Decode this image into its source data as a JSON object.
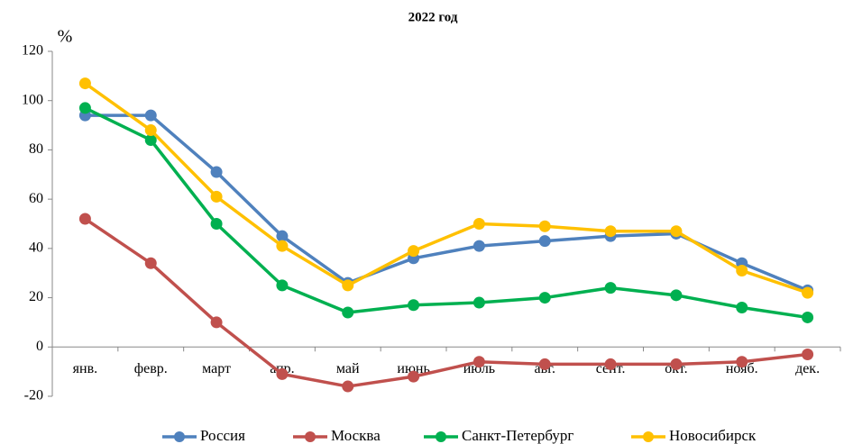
{
  "chart_data": {
    "type": "line",
    "title": "2022 год",
    "y_label": "%",
    "categories": [
      "янв.",
      "февр.",
      "март",
      "апр.",
      "май",
      "июнь",
      "июль",
      "авг.",
      "сент.",
      "окт.",
      "нояб.",
      "дек."
    ],
    "series": [
      {
        "name": "Россия",
        "color": "#4f81bd",
        "values": [
          94,
          94,
          71,
          45,
          26,
          36,
          41,
          43,
          45,
          46,
          34,
          23
        ]
      },
      {
        "name": "Москва",
        "color": "#c0504d",
        "values": [
          52,
          34,
          10,
          -11,
          -16,
          -12,
          -6,
          -7,
          -7,
          -7,
          -6,
          -3
        ]
      },
      {
        "name": "Санкт-Петербург",
        "color": "#00b050",
        "values": [
          97,
          84,
          50,
          25,
          14,
          17,
          18,
          20,
          24,
          21,
          16,
          12
        ]
      },
      {
        "name": "Новосибирск",
        "color": "#ffc000",
        "values": [
          107,
          88,
          61,
          41,
          25,
          39,
          50,
          49,
          47,
          47,
          31,
          22
        ]
      }
    ],
    "ylim": [
      -20,
      120
    ],
    "yticks": [
      -20,
      0,
      20,
      40,
      60,
      80,
      100,
      120
    ],
    "grid": false,
    "legend": "bottom"
  }
}
